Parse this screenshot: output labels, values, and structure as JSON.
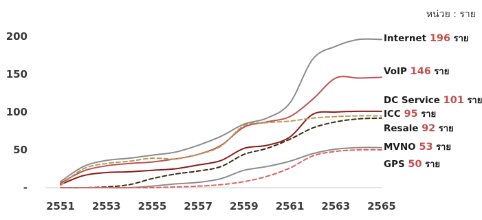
{
  "chart_data": {
    "type": "line",
    "unit_label": "หน่วย : ราย",
    "x": [
      2551,
      2552,
      2553,
      2554,
      2555,
      2556,
      2557,
      2558,
      2559,
      2560,
      2561,
      2562,
      2563,
      2564,
      2565
    ],
    "x_tick_labels": [
      "2551",
      "2553",
      "2555",
      "2557",
      "2559",
      "2561",
      "2563",
      "2565"
    ],
    "y_tick_labels": [
      "-",
      "50",
      "100",
      "150",
      "200"
    ],
    "ylim": [
      0,
      210
    ],
    "grid": false,
    "legend": "direct labels at line ends (right)",
    "series": [
      {
        "name": "Internet",
        "end_value": "196",
        "unit": "ราย",
        "color": "#8c8c8c",
        "value_color": "#c0504d",
        "dash": "solid",
        "values": [
          8,
          28,
          36,
          39,
          43,
          47,
          56,
          68,
          84,
          92,
          112,
          170,
          187,
          196,
          196
        ]
      },
      {
        "name": "VoIP",
        "end_value": "146",
        "unit": "ราย",
        "color": "#c0504d",
        "value_color": "#c0504d",
        "dash": "solid",
        "values": [
          6,
          22,
          29,
          32,
          34,
          38,
          44,
          56,
          80,
          87,
          94,
          117,
          145,
          145,
          146
        ]
      },
      {
        "name": "DC Service",
        "end_value": "101",
        "unit": "ราย",
        "color": "#8b1a1a",
        "value_color": "#c0504d",
        "dash": "solid",
        "values": [
          4,
          16,
          20,
          21,
          23,
          25,
          30,
          36,
          52,
          56,
          67,
          97,
          100,
          101,
          101
        ]
      },
      {
        "name": "ICC",
        "end_value": "95",
        "unit": "ราย",
        "color": "#b59a5a",
        "value_color": "#c0504d",
        "dash": "dashed",
        "values": [
          3,
          25,
          32,
          35,
          39,
          38,
          44,
          55,
          82,
          86,
          88,
          92,
          94,
          95,
          95
        ]
      },
      {
        "name": "Resale",
        "end_value": "92",
        "unit": "ราย",
        "color": "#3d2a10",
        "value_color": "#c0504d",
        "dash": "dashed",
        "values": [
          0,
          0,
          1,
          4,
          12,
          18,
          22,
          28,
          44,
          52,
          64,
          79,
          87,
          91,
          92
        ]
      },
      {
        "name": "MVNO",
        "end_value": "53",
        "unit": "ราย",
        "color": "#8c8c8c",
        "value_color": "#c0504d",
        "dash": "solid",
        "values": [
          0,
          0,
          0,
          0,
          2,
          5,
          7,
          12,
          23,
          28,
          35,
          45,
          51,
          53,
          53
        ]
      },
      {
        "name": "GPS",
        "end_value": "50",
        "unit": "ราย",
        "color": "#e06060",
        "value_color": "#c0504d",
        "dash": "dashed",
        "values": [
          0,
          0,
          0,
          0,
          0,
          1,
          2,
          4,
          8,
          15,
          26,
          42,
          48,
          50,
          50
        ]
      }
    ]
  }
}
